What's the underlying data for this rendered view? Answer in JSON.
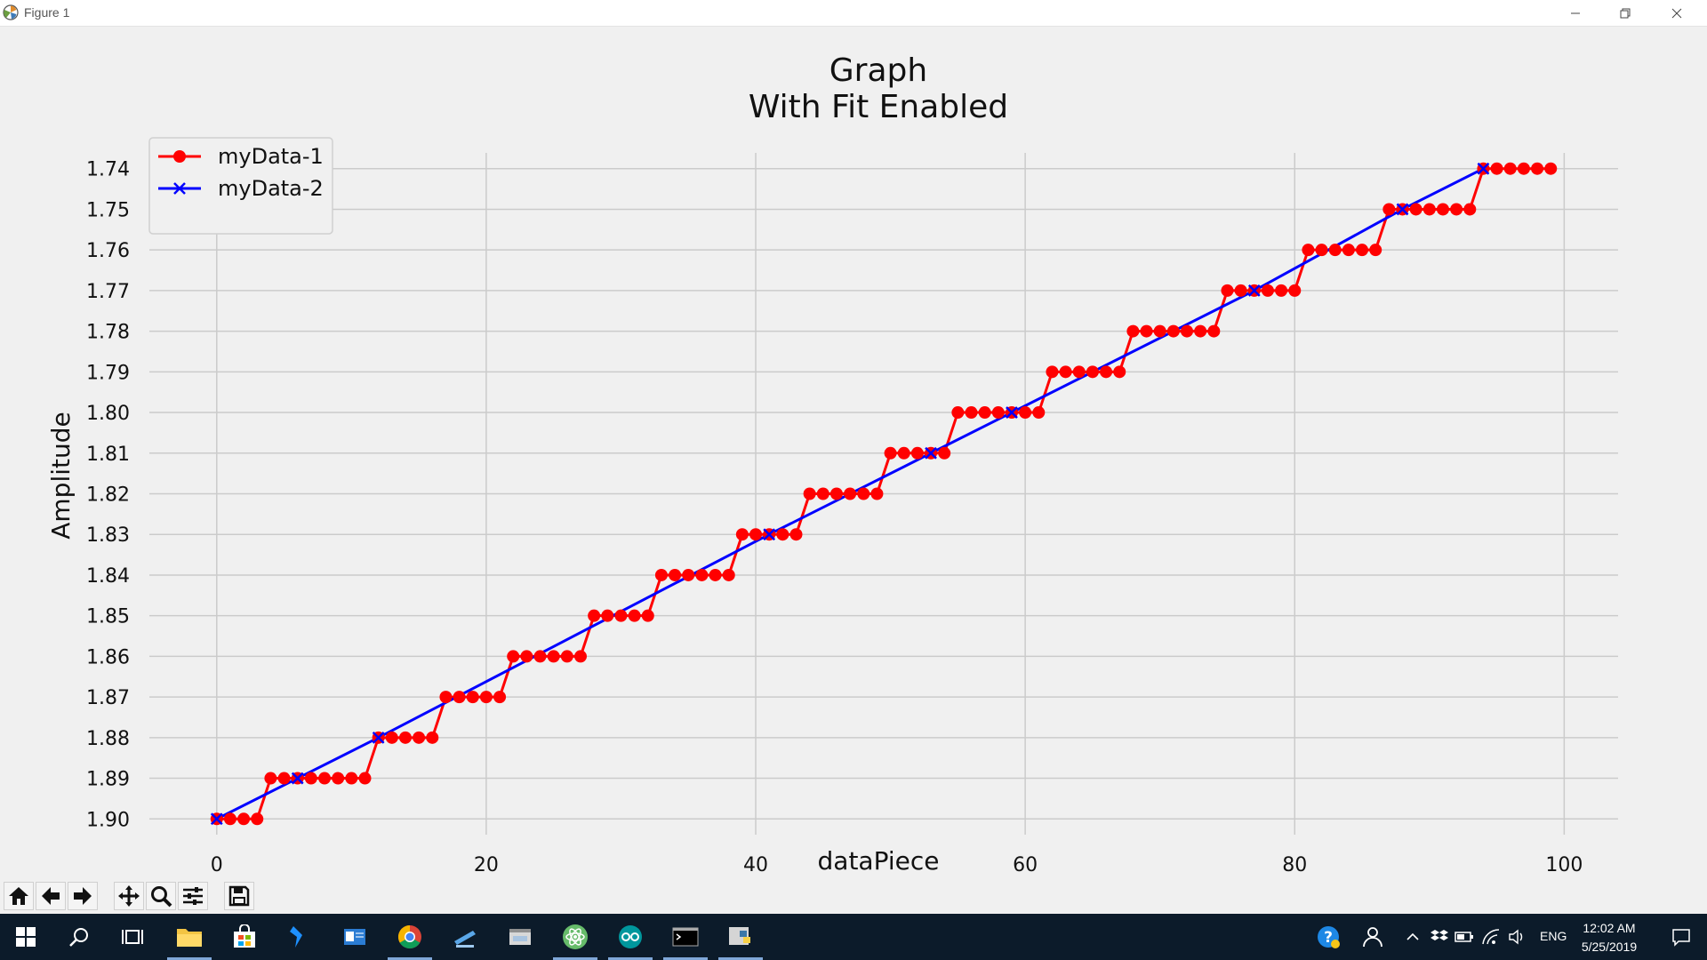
{
  "window": {
    "title": "Figure 1"
  },
  "chart_data": {
    "type": "line",
    "title": "Graph",
    "subtitle": "With Fit Enabled",
    "xlabel": "dataPiece",
    "ylabel": "Amplitude",
    "xlim": [
      -5,
      104
    ],
    "ylim": [
      1.903,
      1.737
    ],
    "y_inverted": true,
    "grid": true,
    "legend_position": "top-left",
    "xticks": [
      "0",
      "20",
      "40",
      "60",
      "80",
      "100"
    ],
    "xtick_values": [
      0,
      20,
      40,
      60,
      80,
      100
    ],
    "yticks": [
      "1.74",
      "1.75",
      "1.76",
      "1.77",
      "1.78",
      "1.79",
      "1.80",
      "1.81",
      "1.82",
      "1.83",
      "1.84",
      "1.85",
      "1.86",
      "1.87",
      "1.88",
      "1.89",
      "1.90"
    ],
    "ytick_values": [
      1.74,
      1.75,
      1.76,
      1.77,
      1.78,
      1.79,
      1.8,
      1.81,
      1.82,
      1.83,
      1.84,
      1.85,
      1.86,
      1.87,
      1.88,
      1.89,
      1.9
    ],
    "series": [
      {
        "name": "myData-1",
        "color": "#ff0000",
        "marker": "circle",
        "x": [
          0,
          1,
          2,
          3,
          4,
          5,
          6,
          7,
          8,
          9,
          10,
          11,
          12,
          13,
          14,
          15,
          16,
          17,
          18,
          19,
          20,
          21,
          22,
          23,
          24,
          25,
          26,
          27,
          28,
          29,
          30,
          31,
          32,
          33,
          34,
          35,
          36,
          37,
          38,
          39,
          40,
          41,
          42,
          43,
          44,
          45,
          46,
          47,
          48,
          49,
          50,
          51,
          52,
          53,
          54,
          55,
          56,
          57,
          58,
          59,
          60,
          61,
          62,
          63,
          64,
          65,
          66,
          67,
          68,
          69,
          70,
          71,
          72,
          73,
          74,
          75,
          76,
          77,
          78,
          79,
          80,
          81,
          82,
          83,
          84,
          85,
          86,
          87,
          88,
          89,
          90,
          91,
          92,
          93,
          94,
          95,
          96,
          97,
          98,
          99
        ],
        "y": [
          1.9,
          1.9,
          1.9,
          1.9,
          1.89,
          1.89,
          1.89,
          1.89,
          1.89,
          1.89,
          1.89,
          1.89,
          1.88,
          1.88,
          1.88,
          1.88,
          1.88,
          1.87,
          1.87,
          1.87,
          1.87,
          1.87,
          1.86,
          1.86,
          1.86,
          1.86,
          1.86,
          1.86,
          1.85,
          1.85,
          1.85,
          1.85,
          1.85,
          1.84,
          1.84,
          1.84,
          1.84,
          1.84,
          1.84,
          1.83,
          1.83,
          1.83,
          1.83,
          1.83,
          1.82,
          1.82,
          1.82,
          1.82,
          1.82,
          1.82,
          1.81,
          1.81,
          1.81,
          1.81,
          1.81,
          1.8,
          1.8,
          1.8,
          1.8,
          1.8,
          1.8,
          1.8,
          1.79,
          1.79,
          1.79,
          1.79,
          1.79,
          1.79,
          1.78,
          1.78,
          1.78,
          1.78,
          1.78,
          1.78,
          1.78,
          1.77,
          1.77,
          1.77,
          1.77,
          1.77,
          1.77,
          1.76,
          1.76,
          1.76,
          1.76,
          1.76,
          1.76,
          1.75,
          1.75,
          1.75,
          1.75,
          1.75,
          1.75,
          1.75,
          1.74,
          1.74,
          1.74,
          1.74,
          1.74,
          1.74
        ]
      },
      {
        "name": "myData-2",
        "color": "#0000ff",
        "marker": "x",
        "x": [
          0,
          6,
          12,
          41,
          53,
          59,
          77,
          88,
          94
        ],
        "y": [
          1.9,
          1.89,
          1.88,
          1.83,
          1.81,
          1.8,
          1.77,
          1.75,
          1.74
        ]
      }
    ]
  },
  "toolbar": {
    "buttons": [
      {
        "name": "home-button",
        "icon": "home-icon"
      },
      {
        "name": "back-button",
        "icon": "arrow-left-icon"
      },
      {
        "name": "forward-button",
        "icon": "arrow-right-icon"
      },
      {
        "name": "pan-button",
        "icon": "move-icon"
      },
      {
        "name": "zoom-button",
        "icon": "magnifier-icon"
      },
      {
        "name": "configure-subplots-button",
        "icon": "sliders-icon"
      },
      {
        "name": "save-button",
        "icon": "floppy-icon"
      }
    ]
  },
  "taskbar": {
    "clock_time": "12:02 AM",
    "clock_date": "5/25/2019",
    "language": "ENG"
  }
}
